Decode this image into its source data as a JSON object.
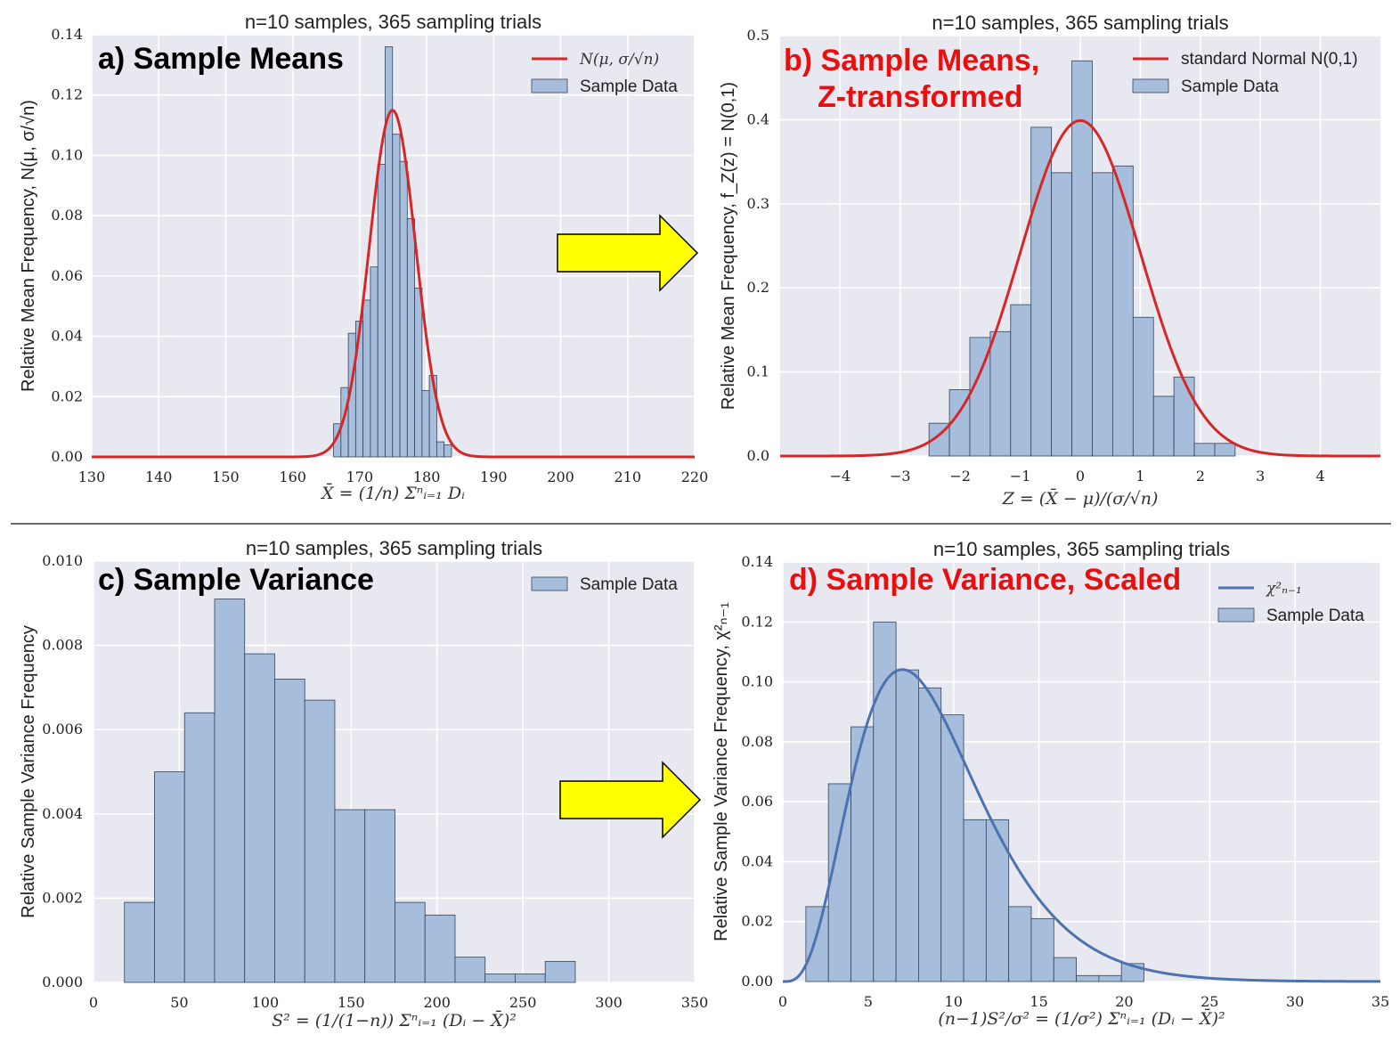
{
  "colors": {
    "bar": "#a6bedb",
    "bar_edge": "#33425a",
    "red_curve": "#d62728",
    "blue_curve": "#4c72b0",
    "panel_bg": "#e8e8f0",
    "arrow": "#ffff00",
    "annot_black": "#000000",
    "annot_red": "#e8100f"
  },
  "chart_data": [
    {
      "id": "a",
      "type": "bar",
      "title": "n=10 samples, 365 sampling trials",
      "annotation": "a) Sample Means",
      "annotation_color": "black",
      "xlabel": "X̄ = (1/n) Σⁿᵢ₌₁ Dᵢ",
      "ylabel": "Relative Mean Frequency, N(μ, σ/√n)",
      "xlim": [
        130,
        220
      ],
      "ylim": [
        0,
        0.14
      ],
      "xticks": [
        130,
        140,
        150,
        160,
        170,
        180,
        190,
        200,
        210,
        220
      ],
      "yticks": [
        0.0,
        0.02,
        0.04,
        0.06,
        0.08,
        0.1,
        0.12,
        0.14
      ],
      "xtick_labels": [
        "130",
        "140",
        "150",
        "160",
        "170",
        "180",
        "190",
        "200",
        "210",
        "220"
      ],
      "ytick_labels": [
        "0.00",
        "0.02",
        "0.04",
        "0.06",
        "0.08",
        "0.10",
        "0.12",
        "0.14"
      ],
      "legend": {
        "position": "top-right",
        "items": [
          {
            "kind": "line",
            "label": "N(μ, σ/√n)",
            "math": true,
            "color": "red_curve"
          },
          {
            "kind": "patch",
            "label": "Sample Data",
            "math": false
          }
        ]
      },
      "bin_edges": [
        166.1,
        167.2,
        168.3,
        169.4,
        170.5,
        171.6,
        172.7,
        173.8,
        174.9,
        176.0,
        177.1,
        178.2,
        179.3,
        180.4,
        181.5,
        182.6,
        183.7
      ],
      "values": [
        0.011,
        0.023,
        0.041,
        0.045,
        0.052,
        0.063,
        0.097,
        0.136,
        0.107,
        0.098,
        0.079,
        0.056,
        0.022,
        0.027,
        0.005,
        0.004
      ],
      "curve": {
        "kind": "normal",
        "mu": 174.9,
        "sigma": 3.47,
        "color": "red_curve"
      }
    },
    {
      "id": "b",
      "type": "bar",
      "title": "n=10 samples, 365 sampling trials",
      "annotation": "b) Sample Means,\nZ-transformed",
      "annotation_color": "red",
      "xlabel": "Z = (X̄ − μ)/(σ/√n)",
      "ylabel": "Relative Mean Frequency, f_Z(z) = N(0,1)",
      "xlim": [
        -5,
        5
      ],
      "ylim": [
        0,
        0.5
      ],
      "xticks": [
        -4,
        -3,
        -2,
        -1,
        0,
        1,
        2,
        3,
        4
      ],
      "yticks": [
        0.0,
        0.1,
        0.2,
        0.3,
        0.4,
        0.5
      ],
      "xtick_labels": [
        "−4",
        "−3",
        "−2",
        "−1",
        "0",
        "1",
        "2",
        "3",
        "4"
      ],
      "ytick_labels": [
        "0.0",
        "0.1",
        "0.2",
        "0.3",
        "0.4",
        "0.5"
      ],
      "legend": {
        "position": "top-right",
        "items": [
          {
            "kind": "line",
            "label": "standard Normal N(0,1)",
            "math": false,
            "color": "red_curve"
          },
          {
            "kind": "patch",
            "label": "Sample Data",
            "math": false
          }
        ]
      },
      "bin_edges": [
        -2.52,
        -2.18,
        -1.84,
        -1.5,
        -1.16,
        -0.82,
        -0.48,
        -0.14,
        0.2,
        0.54,
        0.88,
        1.22,
        1.56,
        1.9,
        2.24,
        2.58
      ],
      "values": [
        0.039,
        0.079,
        0.141,
        0.148,
        0.18,
        0.391,
        0.337,
        0.47,
        0.337,
        0.345,
        0.165,
        0.071,
        0.094,
        0.015,
        0.015
      ],
      "curve": {
        "kind": "normal",
        "mu": 0,
        "sigma": 1,
        "color": "red_curve"
      }
    },
    {
      "id": "c",
      "type": "bar",
      "title": "n=10 samples, 365 sampling trials",
      "annotation": "c) Sample Variance",
      "annotation_color": "black",
      "xlabel": "S² = (1/(1−n)) Σⁿᵢ₌₁ (Dᵢ − X̄)²",
      "ylabel": "Relative Sample Variance Frequency",
      "xlim": [
        0,
        350
      ],
      "ylim": [
        0,
        0.01
      ],
      "xticks": [
        0,
        50,
        100,
        150,
        200,
        250,
        300,
        350
      ],
      "yticks": [
        0.0,
        0.002,
        0.004,
        0.006,
        0.008,
        0.01
      ],
      "xtick_labels": [
        "0",
        "50",
        "100",
        "150",
        "200",
        "250",
        "300",
        "350"
      ],
      "ytick_labels": [
        "0.000",
        "0.002",
        "0.004",
        "0.006",
        "0.008",
        "0.010"
      ],
      "legend": {
        "position": "top-right",
        "items": [
          {
            "kind": "patch",
            "label": "Sample Data",
            "math": false
          }
        ]
      },
      "bin_edges": [
        18,
        35.5,
        53,
        70.5,
        88,
        105.5,
        123,
        140.5,
        158,
        175.5,
        193,
        210.5,
        228,
        245.5,
        263,
        280.5
      ],
      "values": [
        0.0019,
        0.005,
        0.0064,
        0.0091,
        0.0078,
        0.0072,
        0.0067,
        0.0041,
        0.0041,
        0.0019,
        0.0016,
        0.0006,
        0.0002,
        0.0002,
        0.0005
      ],
      "curve": null
    },
    {
      "id": "d",
      "type": "bar",
      "title": "n=10 samples, 365 sampling trials",
      "annotation": "d) Sample Variance, Scaled",
      "annotation_color": "red",
      "xlabel": "(n−1)S²/σ² = (1/σ²) Σⁿᵢ₌₁ (Dᵢ − X̄)²",
      "ylabel": "Relative Sample Variance Frequency, χ²ₙ₋₁",
      "xlim": [
        0,
        35
      ],
      "ylim": [
        0,
        0.14
      ],
      "xticks": [
        0,
        5,
        10,
        15,
        20,
        25,
        30,
        35
      ],
      "yticks": [
        0.0,
        0.02,
        0.04,
        0.06,
        0.08,
        0.1,
        0.12,
        0.14
      ],
      "xtick_labels": [
        "0",
        "5",
        "10",
        "15",
        "20",
        "25",
        "30",
        "35"
      ],
      "ytick_labels": [
        "0.00",
        "0.02",
        "0.04",
        "0.06",
        "0.08",
        "0.10",
        "0.12",
        "0.14"
      ],
      "legend": {
        "position": "top-right",
        "items": [
          {
            "kind": "line",
            "label": "χ²ₙ₋₁",
            "math": true,
            "color": "blue_curve"
          },
          {
            "kind": "patch",
            "label": "Sample Data",
            "math": false
          }
        ]
      },
      "bin_edges": [
        1.35,
        2.67,
        3.99,
        5.31,
        6.63,
        7.95,
        9.27,
        10.59,
        11.91,
        13.23,
        14.55,
        15.87,
        17.19,
        18.51,
        19.83,
        21.15
      ],
      "values": [
        0.025,
        0.066,
        0.085,
        0.12,
        0.104,
        0.098,
        0.089,
        0.054,
        0.054,
        0.025,
        0.021,
        0.008,
        0.002,
        0.002,
        0.006
      ],
      "curve": {
        "kind": "chi2",
        "k": 9,
        "color": "blue_curve"
      }
    }
  ]
}
